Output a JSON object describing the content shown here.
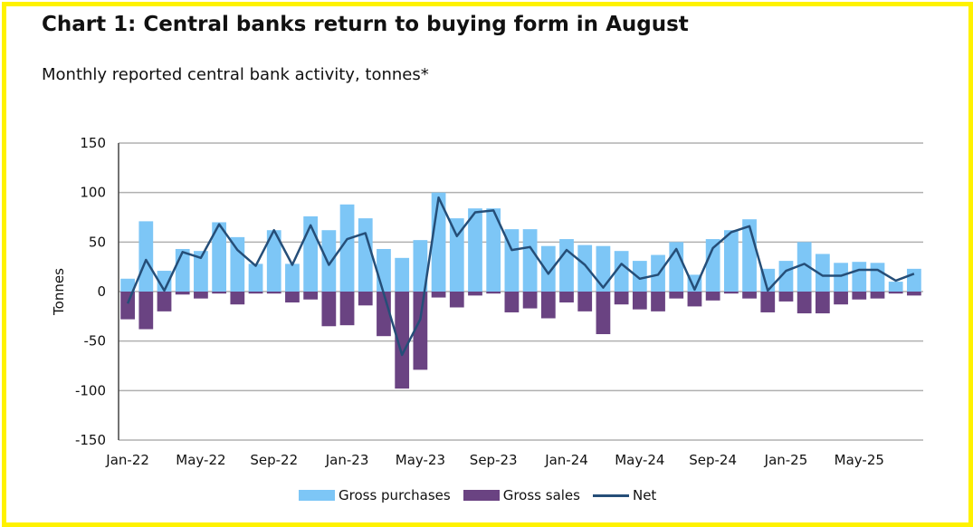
{
  "chart_data": {
    "type": "bar",
    "title": "Chart 1: Central banks return to buying form in August",
    "subtitle": "Monthly reported central bank activity, tonnes*",
    "ylabel": "Tonnes",
    "xlabel": "",
    "ylim": [
      -150,
      150
    ],
    "yticks": [
      150,
      100,
      50,
      0,
      -50,
      -100,
      -150
    ],
    "grid": true,
    "legend_position": "bottom",
    "categories": [
      "Jan-22",
      "Feb-22",
      "Mar-22",
      "Apr-22",
      "May-22",
      "Jun-22",
      "Jul-22",
      "Aug-22",
      "Sep-22",
      "Oct-22",
      "Nov-22",
      "Dec-22",
      "Jan-23",
      "Feb-23",
      "Mar-23",
      "Apr-23",
      "May-23",
      "Jun-23",
      "Jul-23",
      "Aug-23",
      "Sep-23",
      "Oct-23",
      "Nov-23",
      "Dec-23",
      "Jan-24",
      "Feb-24",
      "Mar-24",
      "Apr-24",
      "May-24",
      "Jun-24",
      "Jul-24",
      "Aug-24",
      "Sep-24",
      "Oct-24",
      "Nov-24",
      "Dec-24",
      "Jan-25",
      "Feb-25",
      "Mar-25",
      "Apr-25",
      "May-25",
      "Jun-25",
      "Jul-25",
      "Aug-25"
    ],
    "xtick_labels": [
      "Jan-22",
      "May-22",
      "Sep-22",
      "Jan-23",
      "May-23",
      "Sep-23",
      "Jan-24",
      "May-24",
      "Sep-24",
      "Jan-25",
      "May-25"
    ],
    "series": [
      {
        "name": "Gross purchases",
        "type": "bar",
        "color": "#7DC6F6",
        "values": [
          13,
          71,
          21,
          43,
          41,
          70,
          55,
          28,
          62,
          28,
          76,
          62,
          88,
          74,
          43,
          34,
          52,
          100,
          74,
          84,
          84,
          63,
          63,
          46,
          53,
          47,
          46,
          41,
          31,
          37,
          50,
          17,
          53,
          62,
          73,
          23,
          31,
          50,
          38,
          29,
          30,
          29,
          10,
          23
        ]
      },
      {
        "name": "Gross sales",
        "type": "bar",
        "color": "#6A4382",
        "values": [
          -28,
          -38,
          -20,
          -3,
          -7,
          -2,
          -13,
          -2,
          -2,
          -11,
          -8,
          -35,
          -34,
          -14,
          -45,
          -98,
          -79,
          -6,
          -16,
          -4,
          -2,
          -21,
          -17,
          -27,
          -11,
          -20,
          -43,
          -13,
          -18,
          -20,
          -7,
          -15,
          -9,
          -2,
          -7,
          -21,
          -10,
          -22,
          -22,
          -13,
          -8,
          -7,
          -2,
          -4
        ]
      },
      {
        "name": "Net",
        "type": "line",
        "color": "#254E78",
        "values": [
          -12,
          32,
          1,
          40,
          34,
          68,
          42,
          26,
          62,
          27,
          67,
          27,
          53,
          59,
          -2,
          -64,
          -28,
          95,
          56,
          80,
          82,
          42,
          45,
          18,
          42,
          27,
          4,
          28,
          13,
          17,
          43,
          2,
          44,
          60,
          66,
          1,
          21,
          28,
          16,
          16,
          22,
          22,
          11,
          18
        ]
      }
    ]
  }
}
